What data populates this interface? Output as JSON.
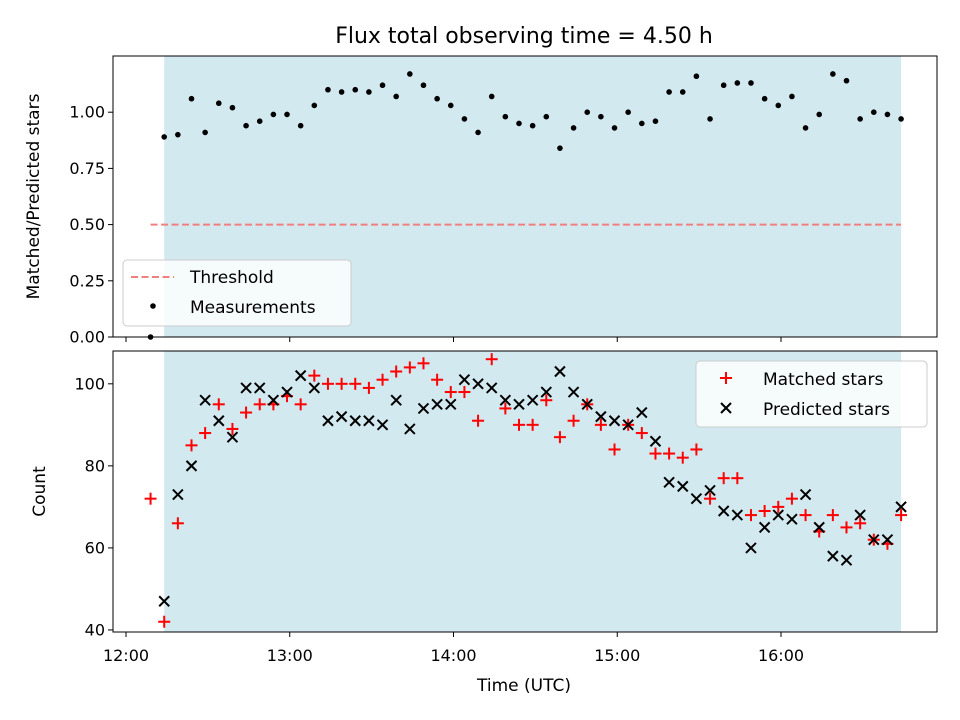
{
  "colors": {
    "window_fill": "#d3e9f0",
    "threshold_line": "#f08080",
    "matched": "#ff0000",
    "predicted": "#000000",
    "measurement": "#000000"
  },
  "chart_data": [
    {
      "type": "scatter",
      "title": "Flux total observing time = 4.50 h",
      "xlabel": "",
      "ylabel": "Matched/Predicted stars",
      "xlim": [
        "12:00",
        "17:00"
      ],
      "ylim": [
        0,
        1.25
      ],
      "yticks": [
        "0.00",
        "0.25",
        "0.50",
        "0.75",
        "1.00"
      ],
      "grid": false,
      "legend_position": "lower-left",
      "shaded_window": {
        "start": "12:14",
        "end": "16:44"
      },
      "threshold": {
        "name": "Threshold",
        "value": 0.5,
        "start": "12:09",
        "end": "16:44",
        "style": "dashed"
      },
      "series": [
        {
          "name": "Measurements",
          "x": [
            "12:09",
            "12:14",
            "12:19",
            "12:24",
            "12:29",
            "12:34",
            "12:39",
            "12:44",
            "12:49",
            "12:54",
            "12:59",
            "13:04",
            "13:09",
            "13:14",
            "13:19",
            "13:24",
            "13:29",
            "13:34",
            "13:39",
            "13:44",
            "13:49",
            "13:54",
            "13:59",
            "14:04",
            "14:09",
            "14:14",
            "14:19",
            "14:24",
            "14:29",
            "14:34",
            "14:39",
            "14:44",
            "14:49",
            "14:54",
            "14:59",
            "15:04",
            "15:09",
            "15:14",
            "15:19",
            "15:24",
            "15:29",
            "15:34",
            "15:39",
            "15:44",
            "15:49",
            "15:54",
            "15:59",
            "16:04",
            "16:09",
            "16:14",
            "16:19",
            "16:24",
            "16:29",
            "16:34",
            "16:39",
            "16:44"
          ],
          "y": [
            0.0,
            0.89,
            0.9,
            1.06,
            0.91,
            1.04,
            1.02,
            0.94,
            0.96,
            0.99,
            0.99,
            0.94,
            1.03,
            1.1,
            1.09,
            1.1,
            1.09,
            1.12,
            1.07,
            1.17,
            1.12,
            1.06,
            1.03,
            0.97,
            0.91,
            1.07,
            0.98,
            0.95,
            0.94,
            0.98,
            0.84,
            0.93,
            1.0,
            0.98,
            0.93,
            1.0,
            0.95,
            0.96,
            1.09,
            1.09,
            1.16,
            0.97,
            1.12,
            1.13,
            1.13,
            1.06,
            1.03,
            1.07,
            0.93,
            0.99,
            1.17,
            1.14,
            0.97,
            1.0,
            0.99,
            0.97
          ]
        }
      ]
    },
    {
      "type": "scatter",
      "title": "",
      "xlabel": "Time (UTC)",
      "ylabel": "Count",
      "xlim": [
        "12:00",
        "17:00"
      ],
      "ylim": [
        39.5,
        108
      ],
      "yticks": [
        "40",
        "60",
        "80",
        "100"
      ],
      "xticks": [
        "12:00",
        "13:00",
        "14:00",
        "15:00",
        "16:00"
      ],
      "grid": false,
      "legend_position": "top-right",
      "shaded_window": {
        "start": "12:14",
        "end": "16:44"
      },
      "x": [
        "12:09",
        "12:14",
        "12:19",
        "12:24",
        "12:29",
        "12:34",
        "12:39",
        "12:44",
        "12:49",
        "12:54",
        "12:59",
        "13:04",
        "13:09",
        "13:14",
        "13:19",
        "13:24",
        "13:29",
        "13:34",
        "13:39",
        "13:44",
        "13:49",
        "13:54",
        "13:59",
        "14:04",
        "14:09",
        "14:14",
        "14:19",
        "14:24",
        "14:29",
        "14:34",
        "14:39",
        "14:44",
        "14:49",
        "14:54",
        "14:59",
        "15:04",
        "15:09",
        "15:14",
        "15:19",
        "15:24",
        "15:29",
        "15:34",
        "15:39",
        "15:44",
        "15:49",
        "15:54",
        "15:59",
        "16:04",
        "16:09",
        "16:14",
        "16:19",
        "16:24",
        "16:29",
        "16:34",
        "16:39",
        "16:44"
      ],
      "series": [
        {
          "name": "Matched stars",
          "marker": "plus",
          "values": [
            72,
            42,
            66,
            85,
            88,
            95,
            89,
            93,
            95,
            95,
            97,
            95,
            102,
            100,
            100,
            100,
            99,
            101,
            103,
            104,
            105,
            101,
            98,
            98,
            91,
            106,
            94,
            90,
            90,
            96,
            87,
            91,
            95,
            90,
            84,
            90,
            88,
            83,
            83,
            82,
            84,
            72,
            77,
            77,
            68,
            69,
            70,
            72,
            68,
            64,
            68,
            65,
            66,
            62,
            61,
            68
          ]
        },
        {
          "name": "Predicted stars",
          "marker": "x",
          "values": [
            null,
            47,
            73,
            80,
            96,
            91,
            87,
            99,
            99,
            96,
            98,
            102,
            99,
            91,
            92,
            91,
            91,
            90,
            96,
            89,
            94,
            95,
            95,
            101,
            100,
            99,
            96,
            95,
            96,
            98,
            103,
            98,
            95,
            92,
            91,
            90,
            93,
            86,
            76,
            75,
            72,
            74,
            69,
            68,
            60,
            65,
            68,
            67,
            73,
            65,
            58,
            57,
            68,
            62,
            62,
            70
          ]
        }
      ]
    }
  ]
}
